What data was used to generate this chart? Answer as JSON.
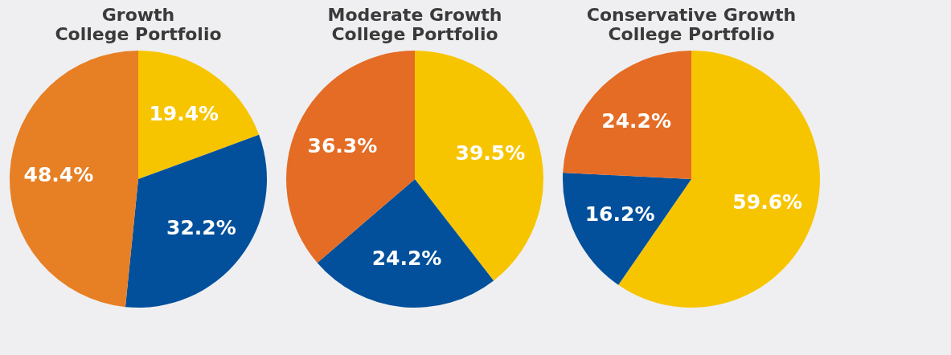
{
  "chart_data": [
    {
      "type": "pie",
      "title": "Growth\nCollege Portfolio",
      "categories": [
        null,
        null,
        null
      ],
      "values": [
        19.4,
        32.2,
        48.4
      ],
      "colors": [
        "#f7c500",
        "#02509b",
        "#e77f24"
      ],
      "value_labels": [
        "19.4%",
        "32.2%",
        "48.4%"
      ]
    },
    {
      "type": "pie",
      "title": "Moderate Growth\nCollege Portfolio",
      "categories": [
        null,
        null,
        null
      ],
      "values": [
        39.5,
        24.2,
        36.3
      ],
      "colors": [
        "#f7c500",
        "#02509b",
        "#e46c25"
      ],
      "value_labels": [
        "39.5%",
        "24.2%",
        "36.3%"
      ]
    },
    {
      "type": "pie",
      "title": "Conservative Growth\nCollege Portfolio",
      "categories": [
        null,
        null,
        null
      ],
      "values": [
        59.6,
        16.2,
        24.2
      ],
      "colors": [
        "#f7c500",
        "#02509b",
        "#e56c24"
      ],
      "value_labels": [
        "59.6%",
        "16.2%",
        "24.2%"
      ]
    }
  ]
}
